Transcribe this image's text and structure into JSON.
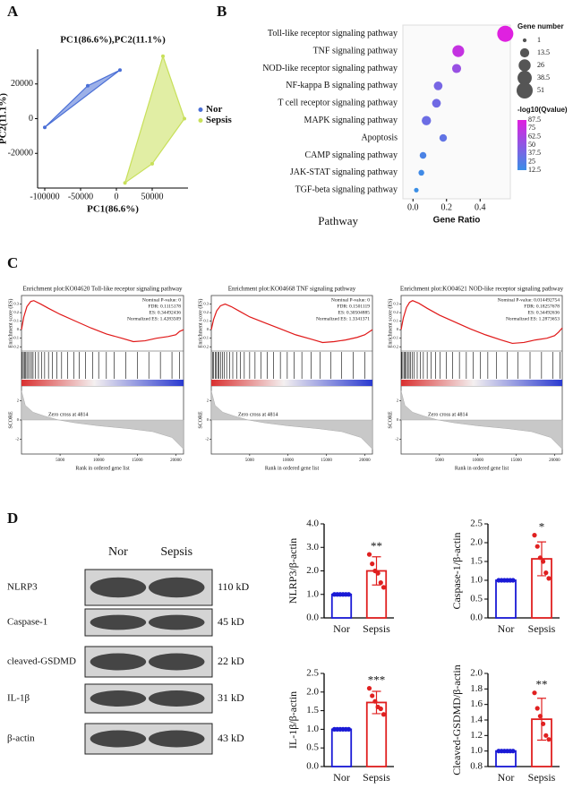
{
  "panel_labels": [
    "A",
    "B",
    "C",
    "D"
  ],
  "blot": {
    "lanes": [
      "Nor",
      "Sepsis"
    ],
    "rows": [
      {
        "label": "NLRP3",
        "size": "110 kD"
      },
      {
        "label": "Caspase-1",
        "size": "45 kD"
      },
      {
        "label": "cleaved-GSDMD",
        "size": "22 kD"
      },
      {
        "label": "IL-1β",
        "size": "31 kD"
      },
      {
        "label": "β-actin",
        "size": "43 kD"
      }
    ]
  },
  "chart_data": [
    {
      "type": "scatter",
      "title": "PC1(86.6%),PC2(11.1%)",
      "xlabel": "PC1(86.6%)",
      "ylabel": "PC2(11.1%)",
      "xlim": [
        -110000,
        100000
      ],
      "ylim": [
        -40000,
        40000
      ],
      "xticks": [
        -100000,
        -50000,
        0,
        50000
      ],
      "yticks": [
        -20000,
        0,
        20000
      ],
      "polygon": true,
      "series": [
        {
          "name": "Nor",
          "color": "#4a6fd6",
          "x": [
            -100000,
            -40000,
            5000
          ],
          "values": [
            -5000,
            19000,
            28000
          ]
        },
        {
          "name": "Sepsis",
          "color": "#c8e05a",
          "x": [
            65000,
            95000,
            50000,
            12000
          ],
          "values": [
            36000,
            0,
            -26000,
            -37000
          ]
        }
      ]
    },
    {
      "type": "bubble",
      "xlabel": "Gene Ratio",
      "ylabel": "Pathway",
      "categories": [
        "Toll-like receptor signaling pathway",
        "TNF signaling pathway",
        "NOD-like receptor signaling pathway",
        "NF-kappa B signaling pathway",
        "T cell receptor signaling pathway",
        "MAPK signaling pathway",
        "Apoptosis",
        "CAMP signaling pathway",
        "JAK-STAT signaling pathway",
        "TGF-beta signaling pathway"
      ],
      "values": [
        0.55,
        0.27,
        0.26,
        0.15,
        0.14,
        0.08,
        0.18,
        0.06,
        0.05,
        0.02
      ],
      "sizes": [
        51,
        25,
        13,
        12,
        12,
        14,
        8,
        6,
        4,
        2
      ],
      "qvalues": [
        87,
        75,
        55,
        40,
        37,
        35,
        30,
        20,
        15,
        12
      ],
      "xlim": [
        -0.06,
        0.58
      ],
      "xticks": [
        {
          "value": 0,
          "label": "0.0"
        },
        0.2,
        0.4
      ],
      "colors": [
        "#3a8ee6",
        "#e020e0"
      ],
      "size_legend": {
        "title": "Gene number",
        "values": [
          1,
          13.5,
          26,
          38.5,
          51
        ]
      },
      "color_legend": {
        "title": "-log10(Qvalue)",
        "ticks": [
          87.5,
          75,
          62.5,
          50,
          37.5,
          25,
          12.5
        ]
      }
    },
    {
      "type": "gsea",
      "title": "Enrichment plot:KO04620 Toll-like receptor signaling pathway",
      "stats": [
        "Nominal P-value: 0",
        "FDR: 0.1115178",
        "ES: 0.34492436",
        "Normalized ES: 1.4283509"
      ],
      "ylabel": "Enrichment score (ES)",
      "score_label": "SCORE",
      "zero_cross_label": "Zero cross at 4814",
      "xlabel": "Rank in ordered gene list",
      "xlim": [
        0,
        21000
      ],
      "xticks": [
        5000,
        10000,
        15000,
        20000
      ],
      "ylim": [
        -0.25,
        0.4
      ],
      "yticks": [
        0.3,
        0.2,
        0.1,
        0,
        -0.1,
        -0.2
      ],
      "x": [
        0,
        300,
        700,
        1200,
        1600,
        2500,
        3500,
        5000,
        7000,
        9000,
        11000,
        13000,
        14500,
        16000,
        17500,
        19000,
        20000,
        20500,
        21000
      ],
      "values": [
        0,
        0.15,
        0.27,
        0.33,
        0.34,
        0.3,
        0.25,
        0.18,
        0.1,
        0.02,
        -0.05,
        -0.1,
        -0.14,
        -0.13,
        -0.1,
        -0.08,
        -0.06,
        -0.02,
        0
      ],
      "hits": [
        100,
        250,
        400,
        550,
        700,
        900,
        1100,
        1300,
        1500,
        1800,
        2200,
        2600,
        3000,
        3500,
        4000,
        4600,
        5200,
        6000,
        6800,
        7500,
        8300,
        9200,
        10000,
        11000,
        12000,
        13500,
        15000,
        16500,
        18000,
        19500,
        20500
      ],
      "score_ylim": [
        -3.5,
        3.5
      ],
      "score_yticks": [
        2,
        0,
        -2
      ],
      "score_x": [
        0,
        500,
        1500,
        3000,
        4814,
        7000,
        10000,
        14000,
        17000,
        19500,
        21000
      ],
      "score_values": [
        3,
        1.5,
        0.8,
        0.4,
        0,
        -0.3,
        -0.6,
        -0.9,
        -1.2,
        -1.8,
        -3
      ]
    },
    {
      "type": "gsea",
      "title": "Enrichment plot:KO04668 TNF signaling pathway",
      "stats": [
        "Nominal P-value: 0",
        "FDR: 0.1501119",
        "ES: 0.30504885",
        "Normalized ES: 1.3341371"
      ],
      "ylabel": "Enrichment score (ES)",
      "score_label": "SCORE",
      "zero_cross_label": "Zero cross at 4814",
      "xlabel": "Rank in ordered gene list",
      "xlim": [
        0,
        21000
      ],
      "xticks": [
        5000,
        10000,
        15000,
        20000
      ],
      "ylim": [
        -0.25,
        0.4
      ],
      "yticks": [
        0.3,
        0.2,
        0.1,
        0,
        -0.1,
        -0.2
      ],
      "x": [
        0,
        300,
        700,
        1200,
        1800,
        2600,
        3600,
        5000,
        7000,
        9000,
        11000,
        13000,
        14500,
        16000,
        17500,
        19000,
        20000,
        20500,
        21000
      ],
      "values": [
        0,
        0.12,
        0.22,
        0.28,
        0.3,
        0.27,
        0.22,
        0.15,
        0.08,
        0.01,
        -0.06,
        -0.11,
        -0.15,
        -0.14,
        -0.12,
        -0.09,
        -0.06,
        -0.03,
        0
      ],
      "hits": [
        150,
        300,
        500,
        650,
        850,
        1000,
        1250,
        1450,
        1700,
        2000,
        2400,
        2800,
        3300,
        3800,
        4300,
        5000,
        5700,
        6500,
        7300,
        8100,
        9000,
        9900,
        10800,
        11800,
        13000,
        14200,
        15600,
        17000,
        18500,
        20000
      ],
      "score_ylim": [
        -3.5,
        3.5
      ],
      "score_yticks": [
        2,
        0,
        -2
      ],
      "score_x": [
        0,
        500,
        1500,
        3000,
        4814,
        7000,
        10000,
        14000,
        17000,
        19500,
        21000
      ],
      "score_values": [
        3,
        1.5,
        0.8,
        0.4,
        0,
        -0.3,
        -0.6,
        -0.9,
        -1.2,
        -1.8,
        -3
      ]
    },
    {
      "type": "gsea",
      "title": "Enrichment plot:KO04621 NOD-like receptor signaling pathway",
      "stats": [
        "Nominal P-value: 0.014492754",
        "FDR: 0.18257678",
        "ES: 0.34492636",
        "Normalized ES: 1.2873653"
      ],
      "ylabel": "Enrichment score (ES)",
      "score_label": "SCORE",
      "zero_cross_label": "Zero cross at 4814",
      "xlabel": "Rank in ordered gene list",
      "xlim": [
        0,
        21000
      ],
      "xticks": [
        5000,
        10000,
        15000,
        20000
      ],
      "ylim": [
        -0.25,
        0.4
      ],
      "yticks": [
        0.3,
        0.2,
        0.1,
        0,
        -0.1,
        -0.2
      ],
      "x": [
        0,
        300,
        700,
        1100,
        1500,
        2300,
        3400,
        5000,
        7000,
        9000,
        11000,
        13000,
        14500,
        16000,
        17500,
        19000,
        20000,
        20500,
        21000
      ],
      "values": [
        0,
        0.14,
        0.26,
        0.32,
        0.34,
        0.31,
        0.25,
        0.17,
        0.09,
        0.01,
        -0.06,
        -0.12,
        -0.16,
        -0.15,
        -0.12,
        -0.1,
        -0.07,
        -0.03,
        0.02
      ],
      "hits": [
        80,
        220,
        380,
        520,
        680,
        850,
        1050,
        1250,
        1450,
        1700,
        2100,
        2500,
        2900,
        3400,
        3900,
        4500,
        5100,
        5900,
        6700,
        7600,
        8500,
        9400,
        10300,
        11300,
        12400,
        13800,
        15200,
        16800,
        18300,
        19800,
        20700
      ],
      "score_ylim": [
        -3.5,
        3.5
      ],
      "score_yticks": [
        2,
        0,
        -2
      ],
      "score_x": [
        0,
        500,
        1500,
        3000,
        4814,
        7000,
        10000,
        14000,
        17000,
        19500,
        21000
      ],
      "score_values": [
        3,
        1.5,
        0.8,
        0.4,
        0,
        -0.3,
        -0.6,
        -0.9,
        -1.2,
        -1.8,
        -3
      ]
    },
    {
      "type": "bar",
      "ylabel": "NLRP3/β-actin",
      "categories": [
        "Nor",
        "Sepsis"
      ],
      "values": [
        1.0,
        2.0
      ],
      "errors": [
        0,
        0.6
      ],
      "points": [
        [
          1,
          1,
          1,
          1,
          1,
          1
        ],
        [
          2.7,
          2.3,
          2.0,
          1.9,
          1.5,
          1.3
        ]
      ],
      "colors": [
        "#1a1ad6",
        "#e02020"
      ],
      "annotation": "**",
      "ylim": [
        0,
        4
      ],
      "yticks": [
        {
          "value": 0,
          "label": "0.0"
        },
        {
          "value": 1,
          "label": "1.0"
        },
        {
          "value": 2,
          "label": "2.0"
        },
        {
          "value": 3,
          "label": "3.0"
        },
        {
          "value": 4,
          "label": "4.0"
        }
      ]
    },
    {
      "type": "bar",
      "ylabel": "Caspase-1/β-actin",
      "categories": [
        "Nor",
        "Sepsis"
      ],
      "values": [
        1.0,
        1.57
      ],
      "errors": [
        0,
        0.45
      ],
      "points": [
        [
          1,
          1,
          1,
          1,
          1,
          1
        ],
        [
          2.2,
          1.9,
          1.6,
          1.5,
          1.2,
          1.05
        ]
      ],
      "colors": [
        "#1a1ad6",
        "#e02020"
      ],
      "annotation": "*",
      "ylim": [
        0,
        2.5
      ],
      "yticks": [
        {
          "value": 0,
          "label": "0.0"
        },
        0.5,
        {
          "value": 1,
          "label": "1.0"
        },
        1.5,
        {
          "value": 2,
          "label": "2.0"
        },
        2.5
      ]
    },
    {
      "type": "bar",
      "ylabel": "IL-1β/β-actin",
      "categories": [
        "Nor",
        "Sepsis"
      ],
      "values": [
        1.0,
        1.72
      ],
      "errors": [
        0,
        0.3
      ],
      "points": [
        [
          1,
          1,
          1,
          1,
          1,
          1
        ],
        [
          2.1,
          1.9,
          1.75,
          1.6,
          1.55,
          1.4
        ]
      ],
      "colors": [
        "#1a1ad6",
        "#e02020"
      ],
      "annotation": "***",
      "ylim": [
        0,
        2.5
      ],
      "yticks": [
        {
          "value": 0,
          "label": "0.0"
        },
        0.5,
        {
          "value": 1,
          "label": "1.0"
        },
        1.5,
        {
          "value": 2,
          "label": "2.0"
        },
        2.5
      ]
    },
    {
      "type": "bar",
      "ylabel": "Cleaved-GSDMD/β-actin",
      "categories": [
        "Nor",
        "Sepsis"
      ],
      "values": [
        1.0,
        1.41
      ],
      "errors": [
        0,
        0.27
      ],
      "points": [
        [
          1,
          1,
          1,
          1,
          1,
          1
        ],
        [
          1.75,
          1.55,
          1.45,
          1.35,
          1.2,
          1.15
        ]
      ],
      "colors": [
        "#1a1ad6",
        "#e02020"
      ],
      "annotation": "**",
      "ylim": [
        0.8,
        2.0
      ],
      "yticks": [
        0.8,
        {
          "value": 1,
          "label": "1.0"
        },
        1.2,
        1.4,
        1.6,
        1.8,
        {
          "value": 2,
          "label": "2.0"
        }
      ]
    }
  ]
}
